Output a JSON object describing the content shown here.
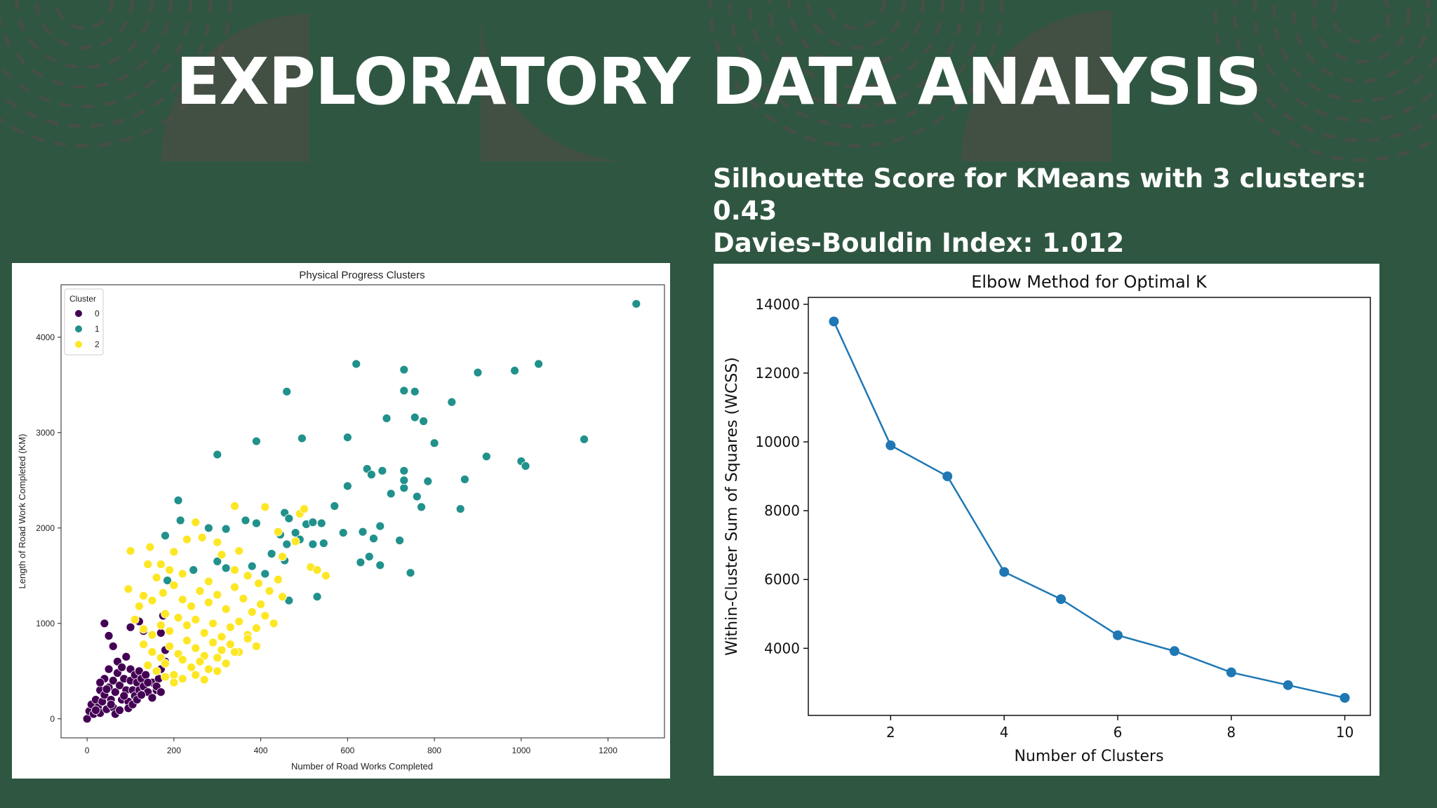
{
  "slide": {
    "title": "EXPLORATORY DATA ANALYSIS",
    "silhouette_line1": "Silhouette Score for KMeans with 3 clusters:",
    "silhouette_line2": "0.43",
    "davies_bouldin": "Davies-Bouldin Index: 1.012",
    "colors": {
      "background": "#2f5641",
      "title": "#ffffff",
      "decor": "#5a4a48"
    }
  },
  "chart_data": [
    {
      "type": "scatter",
      "title": "Physical Progress Clusters",
      "xlabel": "Number of Road Works Completed",
      "ylabel": "Length of Road Work Completed (KM)",
      "xlim": [
        -60,
        1330
      ],
      "ylim": [
        -200,
        4550
      ],
      "xticks": [
        0,
        200,
        400,
        600,
        800,
        1000,
        1200
      ],
      "yticks": [
        0,
        1000,
        2000,
        3000,
        4000
      ],
      "legend": {
        "title": "Cluster",
        "position": "top-left",
        "entries": [
          "0",
          "1",
          "2"
        ]
      },
      "colors": {
        "0": "#440154",
        "1": "#21918c",
        "2": "#fde725"
      },
      "series": [
        {
          "name": "0",
          "points": [
            [
              0,
              0
            ],
            [
              5,
              80
            ],
            [
              10,
              150
            ],
            [
              15,
              50
            ],
            [
              20,
              200
            ],
            [
              25,
              120
            ],
            [
              30,
              300
            ],
            [
              30,
              60
            ],
            [
              35,
              180
            ],
            [
              40,
              250
            ],
            [
              40,
              420
            ],
            [
              45,
              100
            ],
            [
              50,
              330
            ],
            [
              50,
              520
            ],
            [
              55,
              200
            ],
            [
              60,
              400
            ],
            [
              60,
              120
            ],
            [
              65,
              280
            ],
            [
              70,
              480
            ],
            [
              70,
              600
            ],
            [
              75,
              350
            ],
            [
              80,
              200
            ],
            [
              80,
              540
            ],
            [
              85,
              420
            ],
            [
              90,
              300
            ],
            [
              90,
              650
            ],
            [
              95,
              180
            ],
            [
              100,
              400
            ],
            [
              100,
              520
            ],
            [
              105,
              300
            ],
            [
              110,
              240
            ],
            [
              110,
              460
            ],
            [
              115,
              380
            ],
            [
              120,
              300
            ],
            [
              120,
              500
            ],
            [
              125,
              420
            ],
            [
              130,
              340
            ],
            [
              135,
              460
            ],
            [
              140,
              280
            ],
            [
              150,
              380
            ],
            [
              160,
              300
            ],
            [
              165,
              420
            ],
            [
              170,
              520
            ],
            [
              180,
              600
            ],
            [
              40,
              1000
            ],
            [
              50,
              870
            ],
            [
              60,
              760
            ],
            [
              100,
              960
            ],
            [
              120,
              1020
            ],
            [
              130,
              920
            ],
            [
              170,
              900
            ],
            [
              180,
              720
            ],
            [
              175,
              1080
            ],
            [
              20,
              90
            ],
            [
              30,
              380
            ],
            [
              45,
              310
            ],
            [
              55,
              150
            ],
            [
              65,
              50
            ],
            [
              75,
              90
            ],
            [
              85,
              240
            ],
            [
              95,
              110
            ],
            [
              105,
              150
            ],
            [
              115,
              200
            ],
            [
              125,
              250
            ],
            [
              140,
              380
            ],
            [
              150,
              220
            ],
            [
              160,
              340
            ],
            [
              170,
              280
            ]
          ]
        },
        {
          "name": "1",
          "points": [
            [
              1265,
              4350
            ],
            [
              620,
              3720
            ],
            [
              730,
              3660
            ],
            [
              900,
              3630
            ],
            [
              985,
              3650
            ],
            [
              1040,
              3720
            ],
            [
              460,
              3430
            ],
            [
              730,
              3440
            ],
            [
              755,
              3430
            ],
            [
              840,
              3320
            ],
            [
              300,
              2770
            ],
            [
              390,
              2910
            ],
            [
              495,
              2940
            ],
            [
              600,
              2950
            ],
            [
              690,
              3150
            ],
            [
              755,
              3160
            ],
            [
              775,
              3120
            ],
            [
              800,
              2890
            ],
            [
              920,
              2750
            ],
            [
              1000,
              2700
            ],
            [
              1010,
              2650
            ],
            [
              1145,
              2930
            ],
            [
              645,
              2620
            ],
            [
              655,
              2560
            ],
            [
              680,
              2600
            ],
            [
              730,
              2600
            ],
            [
              600,
              2440
            ],
            [
              700,
              2360
            ],
            [
              730,
              2420
            ],
            [
              730,
              2500
            ],
            [
              785,
              2490
            ],
            [
              870,
              2510
            ],
            [
              760,
              2330
            ],
            [
              770,
              2220
            ],
            [
              860,
              2200
            ],
            [
              570,
              2230
            ],
            [
              210,
              2290
            ],
            [
              215,
              2080
            ],
            [
              280,
              2000
            ],
            [
              320,
              1990
            ],
            [
              365,
              2080
            ],
            [
              455,
              2160
            ],
            [
              465,
              2100
            ],
            [
              505,
              2040
            ],
            [
              520,
              2060
            ],
            [
              540,
              2050
            ],
            [
              390,
              2050
            ],
            [
              445,
              1930
            ],
            [
              480,
              1950
            ],
            [
              520,
              1830
            ],
            [
              545,
              1840
            ],
            [
              590,
              1950
            ],
            [
              635,
              1960
            ],
            [
              660,
              1890
            ],
            [
              675,
              2020
            ],
            [
              720,
              1870
            ],
            [
              650,
              1700
            ],
            [
              630,
              1640
            ],
            [
              675,
              1610
            ],
            [
              745,
              1530
            ],
            [
              425,
              1730
            ],
            [
              455,
              1660
            ],
            [
              465,
              1240
            ],
            [
              530,
              1280
            ],
            [
              460,
              1830
            ],
            [
              490,
              1880
            ],
            [
              180,
              1920
            ],
            [
              185,
              1450
            ],
            [
              245,
              1560
            ],
            [
              300,
              1650
            ],
            [
              320,
              1580
            ],
            [
              380,
              1600
            ],
            [
              410,
              1520
            ]
          ]
        },
        {
          "name": "2",
          "points": [
            [
              100,
              1760
            ],
            [
              140,
              1620
            ],
            [
              145,
              1800
            ],
            [
              160,
              1480
            ],
            [
              170,
              1620
            ],
            [
              190,
              1560
            ],
            [
              200,
              1750
            ],
            [
              230,
              1880
            ],
            [
              250,
              2060
            ],
            [
              265,
              1900
            ],
            [
              300,
              1850
            ],
            [
              310,
              1720
            ],
            [
              340,
              2230
            ],
            [
              350,
              1760
            ],
            [
              410,
              2220
            ],
            [
              440,
              1960
            ],
            [
              450,
              1700
            ],
            [
              480,
              1860
            ],
            [
              490,
              2150
            ],
            [
              500,
              2200
            ],
            [
              515,
              1590
            ],
            [
              530,
              1560
            ],
            [
              550,
              1500
            ],
            [
              95,
              1360
            ],
            [
              130,
              1290
            ],
            [
              150,
              1240
            ],
            [
              175,
              1320
            ],
            [
              200,
              1400
            ],
            [
              220,
              1250
            ],
            [
              240,
              1180
            ],
            [
              260,
              1340
            ],
            [
              280,
              1220
            ],
            [
              300,
              1300
            ],
            [
              320,
              1150
            ],
            [
              340,
              1380
            ],
            [
              360,
              1260
            ],
            [
              380,
              1120
            ],
            [
              400,
              1200
            ],
            [
              420,
              1340
            ],
            [
              440,
              1460
            ],
            [
              450,
              1280
            ],
            [
              110,
              1040
            ],
            [
              130,
              940
            ],
            [
              150,
              880
            ],
            [
              170,
              980
            ],
            [
              190,
              920
            ],
            [
              210,
              1060
            ],
            [
              230,
              980
            ],
            [
              250,
              1040
            ],
            [
              270,
              900
            ],
            [
              290,
              1000
            ],
            [
              310,
              860
            ],
            [
              330,
              960
            ],
            [
              350,
              1020
            ],
            [
              370,
              880
            ],
            [
              390,
              950
            ],
            [
              410,
              1080
            ],
            [
              430,
              1000
            ],
            [
              130,
              780
            ],
            [
              150,
              700
            ],
            [
              170,
              640
            ],
            [
              190,
              760
            ],
            [
              210,
              680
            ],
            [
              230,
              820
            ],
            [
              250,
              740
            ],
            [
              270,
              660
            ],
            [
              290,
              800
            ],
            [
              310,
              720
            ],
            [
              330,
              780
            ],
            [
              350,
              700
            ],
            [
              370,
              840
            ],
            [
              390,
              760
            ],
            [
              140,
              560
            ],
            [
              160,
              500
            ],
            [
              180,
              580
            ],
            [
              200,
              460
            ],
            [
              220,
              620
            ],
            [
              240,
              540
            ],
            [
              260,
              600
            ],
            [
              280,
              520
            ],
            [
              300,
              640
            ],
            [
              320,
              580
            ],
            [
              340,
              700
            ],
            [
              200,
              380
            ],
            [
              220,
              420
            ],
            [
              180,
              440
            ],
            [
              250,
              460
            ],
            [
              270,
              410
            ],
            [
              300,
              500
            ],
            [
              120,
              1180
            ],
            [
              180,
              1100
            ],
            [
              220,
              1520
            ],
            [
              280,
              1440
            ],
            [
              340,
              1560
            ],
            [
              370,
              1500
            ],
            [
              395,
              1420
            ]
          ]
        }
      ]
    },
    {
      "type": "line",
      "title": "Elbow Method for Optimal K",
      "xlabel": "Number of Clusters",
      "ylabel": "Within-Cluster Sum of Squares (WCSS)",
      "x": [
        1,
        2,
        3,
        4,
        5,
        6,
        7,
        8,
        9,
        10
      ],
      "values": [
        13500,
        9900,
        9000,
        6220,
        5430,
        4380,
        3920,
        3300,
        2930,
        2560
      ],
      "xlim": [
        0.55,
        10.45
      ],
      "ylim": [
        2050,
        14200
      ],
      "xticks": [
        2,
        4,
        6,
        8,
        10
      ],
      "yticks": [
        4000,
        6000,
        8000,
        10000,
        12000,
        14000
      ],
      "color": "#1f77b4"
    }
  ]
}
